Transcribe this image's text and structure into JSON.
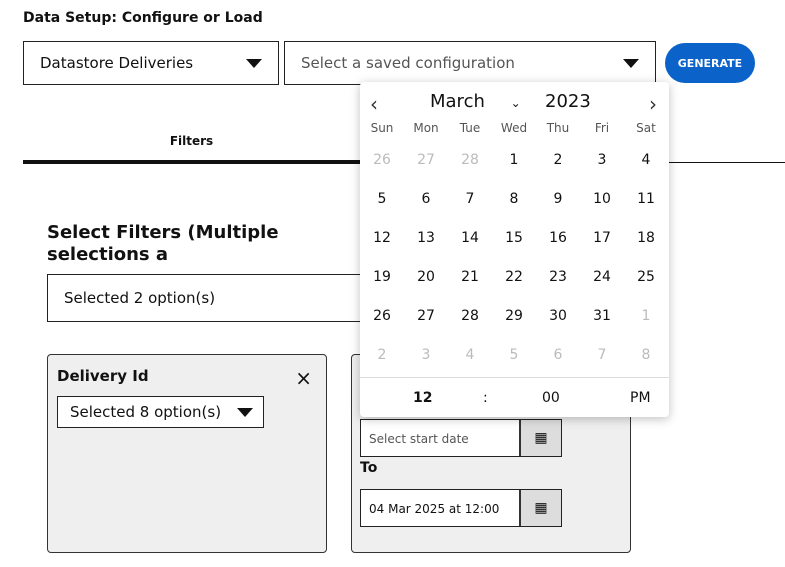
{
  "title": "Data Setup: Configure or Load",
  "datastore": "Datastore Deliveries",
  "config_placeholder": "Select a saved configuration",
  "generate": "GENERATE",
  "tabs": [
    "Filters"
  ],
  "heading": "Select Filters (Multiple selections a",
  "multi": "Selected 2 option(s)",
  "card1": {
    "label": "Delivery Id",
    "close": "×",
    "select": "Selected 8 option(s)"
  },
  "card2": {
    "start_placeholder": "Select start date",
    "to_label": "To",
    "to_value": "04 Mar 2025 at 12:00"
  },
  "calendar": {
    "month": "March",
    "year": "2023",
    "prev": "‹",
    "next": "›",
    "days": [
      "Sun",
      "Mon",
      "Tue",
      "Wed",
      "Thu",
      "Fri",
      "Sat"
    ],
    "weeks": [
      [
        "26",
        "27",
        "28",
        "1",
        "2",
        "3",
        "4"
      ],
      [
        "5",
        "6",
        "7",
        "8",
        "9",
        "10",
        "11"
      ],
      [
        "12",
        "13",
        "14",
        "15",
        "16",
        "17",
        "18"
      ],
      [
        "19",
        "20",
        "21",
        "22",
        "23",
        "24",
        "25"
      ],
      [
        "26",
        "27",
        "28",
        "29",
        "30",
        "31",
        "1"
      ],
      [
        "2",
        "3",
        "4",
        "5",
        "6",
        "7",
        "8"
      ]
    ],
    "hour": "12",
    "sep": ":",
    "minute": "00",
    "ampm": "PM"
  },
  "colors": {
    "accent": "#0b63c9"
  }
}
